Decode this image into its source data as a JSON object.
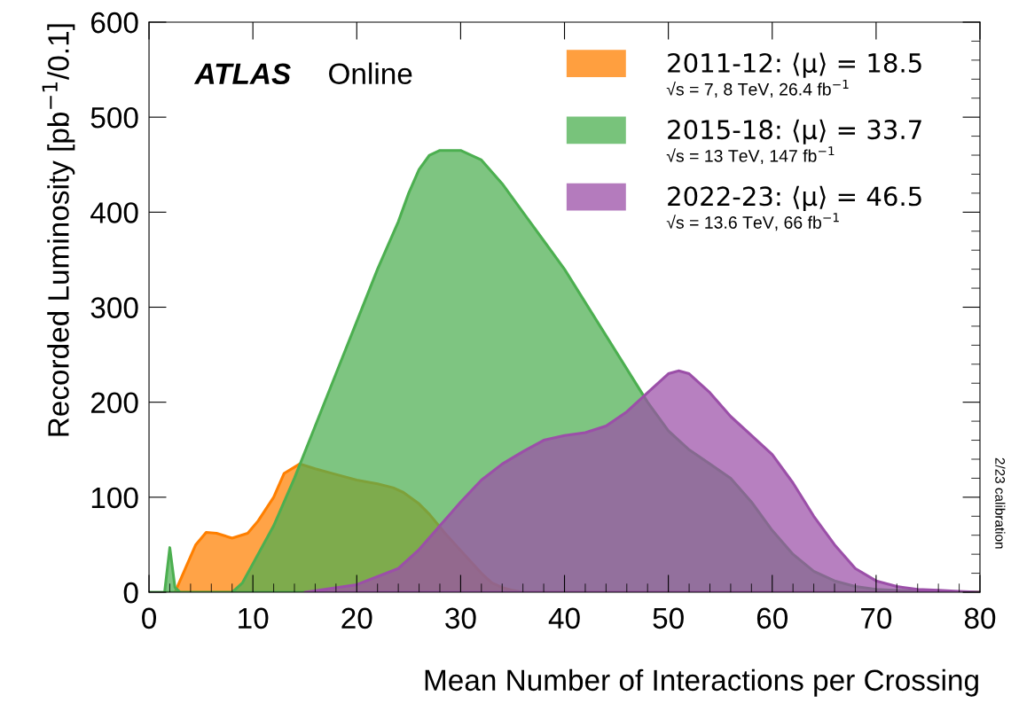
{
  "chart_data": {
    "type": "area",
    "xlabel": "Mean Number of Interactions per Crossing",
    "ylabel": "Recorded Luminosity [pb$^{−1}$/0.1]",
    "xlim": [
      0,
      80
    ],
    "ylim": [
      0,
      600
    ],
    "xticks": [
      0,
      10,
      20,
      30,
      40,
      50,
      60,
      70,
      80
    ],
    "yticks": [
      0,
      100,
      200,
      300,
      400,
      500,
      600
    ],
    "grid": false,
    "legend": "top right",
    "annotations": [
      "ATLAS",
      "Online",
      "√s = 7, 8 TeV, 26.4 fb$^{−1}$",
      "√s = 13 TeV, 147 fb$^{−1}$",
      "√s = 13.6 TeV, 66 fb$^{−1}$",
      "2/23 calibration"
    ],
    "series": [
      {
        "name": "2011-12: ⟨μ⟩ = 18.5",
        "color": "#ff7f00",
        "x": [
          2.5,
          3.5,
          4.5,
          5.5,
          6.5,
          8,
          9.5,
          10.5,
          12,
          13,
          14.5,
          16,
          18,
          20,
          22,
          23.5,
          24.5,
          26,
          27,
          28.5,
          29.5,
          31,
          32,
          33,
          34,
          35,
          36,
          40,
          50,
          60,
          70,
          80
        ],
        "values": [
          0,
          25,
          50,
          63,
          62,
          57,
          62,
          75,
          100,
          125,
          135,
          130,
          124,
          118,
          114,
          110,
          105,
          93,
          82,
          62,
          50,
          32,
          20,
          10,
          5,
          2,
          0,
          0,
          0,
          0,
          0,
          0
        ]
      },
      {
        "name": "2015-18: ⟨μ⟩ = 33.7",
        "color": "#4caf50",
        "x": [
          0,
          1.5,
          2,
          2.5,
          3,
          8,
          9,
          10,
          12,
          14,
          16,
          18,
          20,
          22,
          24,
          25,
          26,
          27,
          28,
          30,
          32,
          34,
          36,
          38,
          40,
          42,
          44,
          46,
          48,
          50,
          52,
          54,
          56,
          58,
          60,
          62,
          64,
          66,
          68,
          70,
          74,
          80
        ],
        "values": [
          0,
          0,
          47,
          5,
          0,
          0,
          10,
          30,
          70,
          120,
          175,
          230,
          285,
          340,
          390,
          420,
          445,
          460,
          465,
          465,
          455,
          430,
          400,
          370,
          340,
          305,
          270,
          235,
          200,
          170,
          150,
          135,
          120,
          95,
          65,
          40,
          22,
          12,
          6,
          3,
          1,
          0
        ]
      },
      {
        "name": "2022-23: ⟨μ⟩ = 46.5",
        "color": "#9b4fa8",
        "x": [
          15,
          20,
          24,
          26,
          28,
          30,
          32,
          34,
          36,
          38,
          40,
          42,
          44,
          46,
          48,
          50,
          51,
          52,
          54,
          56,
          58,
          60,
          62,
          64,
          66,
          68,
          70,
          72,
          74,
          76,
          78,
          80
        ],
        "values": [
          0,
          8,
          25,
          45,
          70,
          95,
          118,
          135,
          148,
          160,
          165,
          168,
          175,
          190,
          210,
          230,
          233,
          230,
          210,
          185,
          165,
          145,
          115,
          80,
          50,
          25,
          12,
          6,
          3,
          2,
          1,
          0
        ]
      }
    ]
  }
}
